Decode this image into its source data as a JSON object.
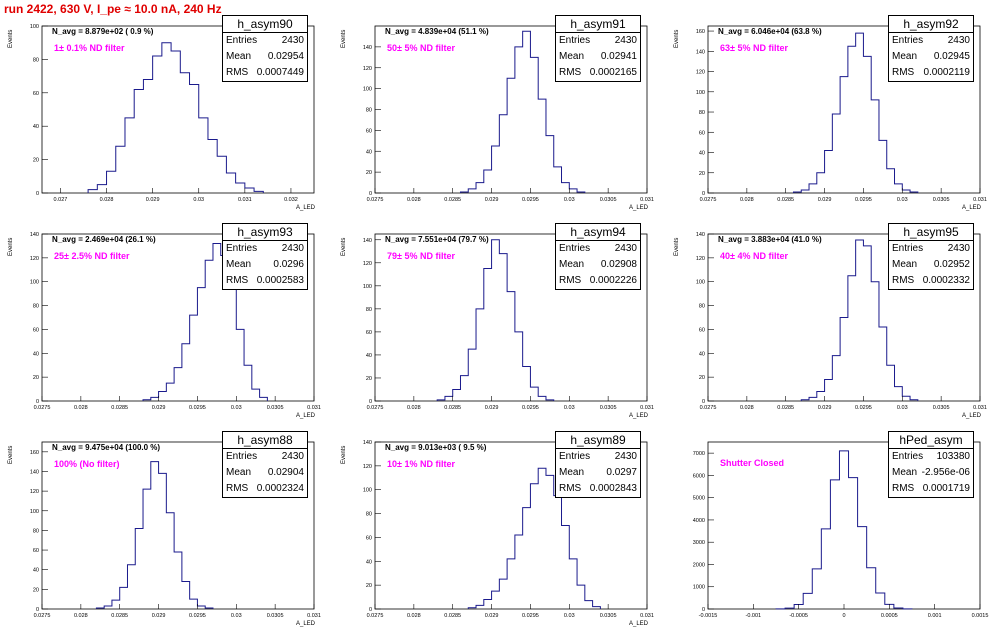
{
  "title": "run 2422,   630 V, I_pe ≈ 10.0 nA, 240 Hz",
  "colors": {
    "title": "#e00000",
    "hist": "#1a1a8c",
    "filter": "#ff00ff",
    "frame": "#000000"
  },
  "chart_data": [
    {
      "type": "bar",
      "name": "h_asym90",
      "navg": "N_avg = 8.879e+02 ( 0.9 %)",
      "filter": "1± 0.1% ND filter",
      "entries": "2430",
      "mean": "0.02954",
      "rms": "0.0007449",
      "xlim": [
        0.0266,
        0.0325
      ],
      "ylim": [
        0,
        100
      ],
      "yticks": [
        0,
        20,
        40,
        60,
        80,
        100
      ],
      "xticks": [
        "0.027",
        "0.028",
        "0.029",
        "0.03",
        "0.031",
        "0.032"
      ],
      "xtick_vals": [
        0.027,
        0.028,
        0.029,
        0.03,
        0.031,
        0.032
      ],
      "xlabel": "A_LED",
      "ylabel": "Events",
      "x": [
        0.0277,
        0.0279,
        0.0281,
        0.0283,
        0.0285,
        0.0287,
        0.0289,
        0.0291,
        0.0293,
        0.0295,
        0.0297,
        0.0299,
        0.0301,
        0.0303,
        0.0305,
        0.0307,
        0.0309,
        0.0311,
        0.0313
      ],
      "values": [
        2,
        5,
        13,
        28,
        45,
        62,
        68,
        82,
        90,
        85,
        72,
        65,
        45,
        32,
        22,
        12,
        6,
        3,
        1
      ]
    },
    {
      "type": "bar",
      "name": "h_asym91",
      "navg": "N_avg = 4.839e+04 (51.1 %)",
      "filter": "50± 5% ND filter",
      "entries": "2430",
      "mean": "0.02941",
      "rms": "0.0002165",
      "xlim": [
        0.0275,
        0.031
      ],
      "ylim": [
        0,
        160
      ],
      "yticks": [
        0,
        20,
        40,
        60,
        80,
        100,
        120,
        140
      ],
      "xticks": [
        "0.0275",
        "0.028",
        "0.0285",
        "0.029",
        "0.0295",
        "0.03",
        "0.0305",
        "0.031"
      ],
      "xtick_vals": [
        0.0275,
        0.028,
        0.0285,
        0.029,
        0.0295,
        0.03,
        0.0305,
        0.031
      ],
      "xlabel": "A_LED",
      "ylabel": "Events",
      "x": [
        0.02865,
        0.02875,
        0.02885,
        0.02895,
        0.02905,
        0.02915,
        0.02925,
        0.02935,
        0.02945,
        0.02955,
        0.02965,
        0.02975,
        0.02985,
        0.02995,
        0.03005,
        0.03015
      ],
      "values": [
        1,
        4,
        10,
        22,
        45,
        75,
        110,
        140,
        155,
        130,
        90,
        55,
        25,
        10,
        4,
        1
      ]
    },
    {
      "type": "bar",
      "name": "h_asym92",
      "navg": "N_avg = 6.046e+04 (63.8 %)",
      "filter": "63± 5% ND filter",
      "entries": "2430",
      "mean": "0.02945",
      "rms": "0.0002119",
      "xlim": [
        0.0275,
        0.031
      ],
      "ylim": [
        0,
        165
      ],
      "yticks": [
        0,
        20,
        40,
        60,
        80,
        100,
        120,
        140,
        160
      ],
      "xticks": [
        "0.0275",
        "0.028",
        "0.0285",
        "0.029",
        "0.0295",
        "0.03",
        "0.0305",
        "0.031"
      ],
      "xtick_vals": [
        0.0275,
        0.028,
        0.0285,
        0.029,
        0.0295,
        0.03,
        0.0305,
        0.031
      ],
      "xlabel": "A_LED",
      "ylabel": "Events",
      "x": [
        0.02865,
        0.02875,
        0.02885,
        0.02895,
        0.02905,
        0.02915,
        0.02925,
        0.02935,
        0.02945,
        0.02955,
        0.02965,
        0.02975,
        0.02985,
        0.02995,
        0.03005,
        0.03015
      ],
      "values": [
        1,
        3,
        9,
        20,
        42,
        78,
        115,
        145,
        158,
        135,
        92,
        52,
        24,
        9,
        3,
        1
      ]
    },
    {
      "type": "bar",
      "name": "h_asym93",
      "navg": "N_avg = 2.469e+04 (26.1 %)",
      "filter": "25± 2.5% ND filter",
      "entries": "2430",
      "mean": "0.0296",
      "rms": "0.0002583",
      "xlim": [
        0.0275,
        0.031
      ],
      "ylim": [
        0,
        140
      ],
      "yticks": [
        0,
        20,
        40,
        60,
        80,
        100,
        120,
        140
      ],
      "xticks": [
        "0.0275",
        "0.028",
        "0.0285",
        "0.029",
        "0.0295",
        "0.03",
        "0.0305",
        "0.031"
      ],
      "xtick_vals": [
        0.0275,
        0.028,
        0.0285,
        0.029,
        0.0295,
        0.03,
        0.0305,
        0.031
      ],
      "xlabel": "A_LED",
      "ylabel": "Events",
      "x": [
        0.02885,
        0.02895,
        0.02905,
        0.02915,
        0.02925,
        0.02935,
        0.02945,
        0.02955,
        0.02965,
        0.02975,
        0.02985,
        0.02995,
        0.03005,
        0.03015,
        0.03025,
        0.03035
      ],
      "values": [
        1,
        3,
        8,
        15,
        28,
        48,
        72,
        95,
        118,
        132,
        122,
        95,
        60,
        30,
        10,
        3
      ]
    },
    {
      "type": "bar",
      "name": "h_asym94",
      "navg": "N_avg = 7.551e+04 (79.7 %)",
      "filter": "79± 5% ND filter",
      "entries": "2430",
      "mean": "0.02908",
      "rms": "0.0002226",
      "xlim": [
        0.0275,
        0.031
      ],
      "ylim": [
        0,
        145
      ],
      "yticks": [
        0,
        20,
        40,
        60,
        80,
        100,
        120,
        140
      ],
      "xticks": [
        "0.0275",
        "0.028",
        "0.0285",
        "0.029",
        "0.0295",
        "0.03",
        "0.0305",
        "0.031"
      ],
      "xtick_vals": [
        0.0275,
        0.028,
        0.0285,
        0.029,
        0.0295,
        0.03,
        0.0305,
        0.031
      ],
      "xlabel": "A_LED",
      "ylabel": "Events",
      "x": [
        0.02835,
        0.02845,
        0.02855,
        0.02865,
        0.02875,
        0.02885,
        0.02895,
        0.02905,
        0.02915,
        0.02925,
        0.02935,
        0.02945,
        0.02955,
        0.02965,
        0.02975
      ],
      "values": [
        1,
        4,
        10,
        22,
        45,
        80,
        115,
        140,
        128,
        95,
        60,
        30,
        12,
        4,
        1
      ]
    },
    {
      "type": "bar",
      "name": "h_asym95",
      "navg": "N_avg = 3.883e+04 (41.0 %)",
      "filter": "40± 4% ND filter",
      "entries": "2430",
      "mean": "0.02952",
      "rms": "0.0002332",
      "xlim": [
        0.0275,
        0.031
      ],
      "ylim": [
        0,
        140
      ],
      "yticks": [
        0,
        20,
        40,
        60,
        80,
        100,
        120,
        140
      ],
      "xticks": [
        "0.0275",
        "0.028",
        "0.0285",
        "0.029",
        "0.0295",
        "0.03",
        "0.0305",
        "0.031"
      ],
      "xtick_vals": [
        0.0275,
        0.028,
        0.0285,
        0.029,
        0.0295,
        0.03,
        0.0305,
        0.031
      ],
      "xlabel": "A_LED",
      "ylabel": "Events",
      "x": [
        0.02875,
        0.02885,
        0.02895,
        0.02905,
        0.02915,
        0.02925,
        0.02935,
        0.02945,
        0.02955,
        0.02965,
        0.02975,
        0.02985,
        0.02995,
        0.03005,
        0.03015
      ],
      "values": [
        1,
        3,
        8,
        18,
        38,
        70,
        105,
        135,
        130,
        100,
        62,
        30,
        12,
        4,
        1
      ]
    },
    {
      "type": "bar",
      "name": "h_asym88",
      "navg": "N_avg = 9.475e+04 (100.0 %)",
      "filter": "100% (No filter)",
      "entries": "2430",
      "mean": "0.02904",
      "rms": "0.0002324",
      "xlim": [
        0.0275,
        0.031
      ],
      "ylim": [
        0,
        170
      ],
      "yticks": [
        0,
        20,
        40,
        60,
        80,
        100,
        120,
        140,
        160
      ],
      "xticks": [
        "0.0275",
        "0.028",
        "0.0285",
        "0.029",
        "0.0295",
        "0.03",
        "0.0305",
        "0.031"
      ],
      "xtick_vals": [
        0.0275,
        0.028,
        0.0285,
        0.029,
        0.0295,
        0.03,
        0.0305,
        0.031
      ],
      "xlabel": "A_LED",
      "ylabel": "Events",
      "x": [
        0.02825,
        0.02835,
        0.02845,
        0.02855,
        0.02865,
        0.02875,
        0.02885,
        0.02895,
        0.02905,
        0.02915,
        0.02925,
        0.02935,
        0.02945,
        0.02955,
        0.02965
      ],
      "values": [
        1,
        3,
        9,
        22,
        45,
        82,
        122,
        150,
        138,
        98,
        58,
        28,
        10,
        3,
        1
      ]
    },
    {
      "type": "bar",
      "name": "h_asym89",
      "navg": "N_avg = 9.013e+03 ( 9.5 %)",
      "filter": "10± 1% ND filter",
      "entries": "2430",
      "mean": "0.0297",
      "rms": "0.0002843",
      "xlim": [
        0.0275,
        0.031
      ],
      "ylim": [
        0,
        140
      ],
      "yticks": [
        0,
        20,
        40,
        60,
        80,
        100,
        120,
        140
      ],
      "xticks": [
        "0.0275",
        "0.028",
        "0.0285",
        "0.029",
        "0.0295",
        "0.03",
        "0.0305",
        "0.031"
      ],
      "xtick_vals": [
        0.0275,
        0.028,
        0.0285,
        0.029,
        0.0295,
        0.03,
        0.0305,
        0.031
      ],
      "xlabel": "A_LED",
      "ylabel": "Events",
      "x": [
        0.02875,
        0.02885,
        0.02895,
        0.02905,
        0.02915,
        0.02925,
        0.02935,
        0.02945,
        0.02955,
        0.02965,
        0.02975,
        0.02985,
        0.02995,
        0.03005,
        0.03015,
        0.03025,
        0.03035
      ],
      "values": [
        1,
        3,
        8,
        15,
        25,
        42,
        62,
        85,
        105,
        118,
        112,
        95,
        70,
        42,
        20,
        7,
        2
      ]
    },
    {
      "type": "bar",
      "name": "hPed_asym",
      "navg": "",
      "filter": "Shutter Closed",
      "entries": "103380",
      "mean": "-2.956e-06",
      "rms": "0.0001719",
      "xlim": [
        -0.0015,
        0.0015
      ],
      "ylim": [
        0,
        7500
      ],
      "yticks": [
        0,
        1000,
        2000,
        3000,
        4000,
        5000,
        6000,
        7000
      ],
      "xticks": [
        "-0.0015",
        "-0.001",
        "-0.0005",
        "0",
        "0.0005",
        "0.001",
        "0.0015"
      ],
      "xtick_vals": [
        -0.0015,
        -0.001,
        -0.0005,
        0,
        0.0005,
        0.001,
        0.0015
      ],
      "xlabel": "",
      "ylabel": "",
      "x": [
        -0.0007,
        -0.0006,
        -0.0005,
        -0.0004,
        -0.0003,
        -0.0002,
        -0.0001,
        0,
        0.0001,
        0.0002,
        0.0003,
        0.0004,
        0.0005,
        0.0006,
        0.0007
      ],
      "values": [
        5,
        40,
        200,
        700,
        1800,
        3600,
        5800,
        7100,
        5900,
        3700,
        1850,
        720,
        210,
        45,
        6
      ]
    }
  ],
  "stat_labels": {
    "entries": "Entries",
    "mean": "Mean",
    "rms": "RMS"
  }
}
